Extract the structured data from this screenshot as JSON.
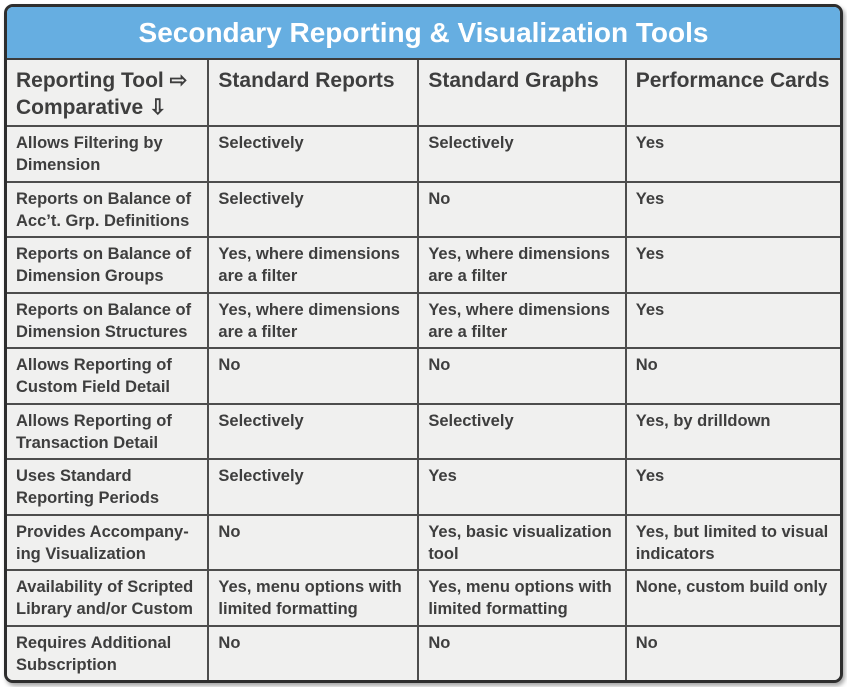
{
  "title": "Secondary Reporting & Visualization Tools",
  "colors": {
    "title_bar": "#66AEE1",
    "title_text": "#FFFFFF",
    "cell_background": "#F0F0EF",
    "text": "#3E3E3E",
    "grid_line": "#4D4D4D",
    "outer_border": "#2E2E2E"
  },
  "chart_data": {
    "type": "table",
    "title": "Secondary Reporting & Visualization Tools",
    "columns": [
      "Reporting Tool ⇨\nComparative ⇩",
      "Standard Reports",
      "Standard Graphs",
      "Performance Cards"
    ],
    "rows": [
      {
        "label": "Allows Filtering by Dimension",
        "cells": [
          "Selectively",
          "Selectively",
          "Yes"
        ]
      },
      {
        "label": "Reports on Balance of Acc’t. Grp. Definitions",
        "cells": [
          "Selectively",
          "No",
          "Yes"
        ]
      },
      {
        "label": "Reports on Balance of Dimension Groups",
        "cells": [
          "Yes, where dimensions are a filter",
          "Yes, where dimensions are a filter",
          "Yes"
        ]
      },
      {
        "label": "Reports on Balance of Dimension Structures",
        "cells": [
          "Yes, where dimensions are a filter",
          "Yes, where dimensions are a filter",
          "Yes"
        ]
      },
      {
        "label": "Allows Reporting of Custom Field Detail",
        "cells": [
          "No",
          "No",
          "No"
        ]
      },
      {
        "label": "Allows Reporting of Transaction Detail",
        "cells": [
          "Selectively",
          "Selectively",
          "Yes, by drilldown"
        ]
      },
      {
        "label": "Uses Standard Reporting Periods",
        "cells": [
          "Selectively",
          "Yes",
          "Yes"
        ]
      },
      {
        "label": "Provides Accompany-ing Visualization",
        "cells": [
          "No",
          "Yes, basic visualization tool",
          "Yes, but limited to visual indicators"
        ]
      },
      {
        "label": "Availability of Scripted Library and/or Custom",
        "cells": [
          "Yes, menu options with limited formatting",
          "Yes, menu options with limited formatting",
          "None, custom build only"
        ]
      },
      {
        "label": "Requires Additional Subscription",
        "cells": [
          "No",
          "No",
          "No"
        ]
      }
    ]
  }
}
